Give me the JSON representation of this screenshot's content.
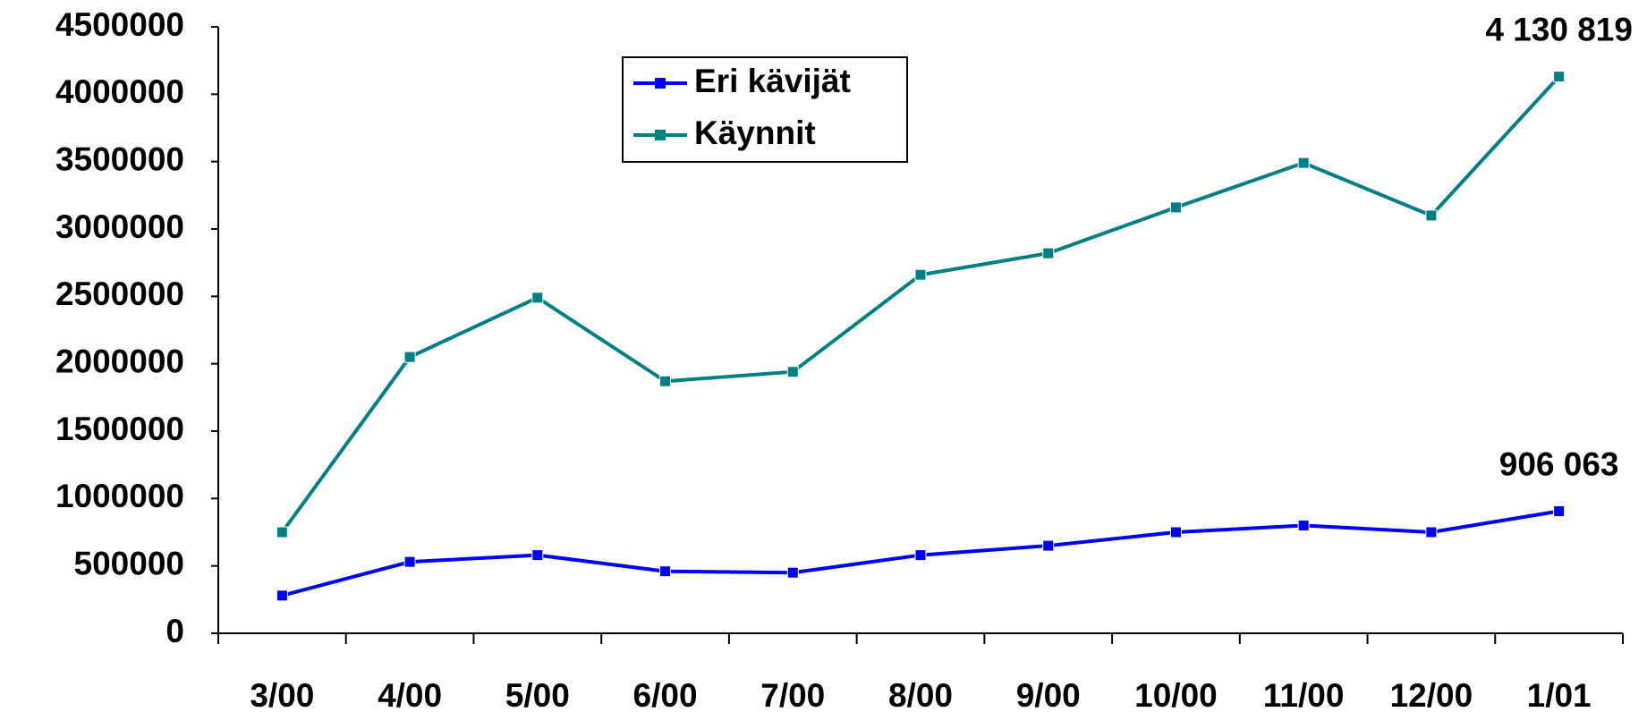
{
  "chart_data": {
    "type": "line",
    "categories": [
      "3/00",
      "4/00",
      "5/00",
      "6/00",
      "7/00",
      "8/00",
      "9/00",
      "10/00",
      "11/00",
      "12/00",
      "1/01"
    ],
    "series": [
      {
        "name": "Eri kävijät",
        "color": "#0000ff",
        "values": [
          280000,
          530000,
          580000,
          460000,
          450000,
          580000,
          650000,
          750000,
          800000,
          750000,
          906063
        ],
        "value_labels": [
          null,
          null,
          null,
          null,
          null,
          null,
          null,
          null,
          null,
          null,
          "906 063"
        ]
      },
      {
        "name": "Käynnit",
        "color": "#008080",
        "values": [
          750000,
          2050000,
          2490000,
          1870000,
          1940000,
          2660000,
          2820000,
          3160000,
          3490000,
          3100000,
          4130819
        ],
        "value_labels": [
          null,
          null,
          null,
          null,
          null,
          null,
          null,
          null,
          null,
          null,
          "4 130 819"
        ]
      }
    ],
    "ylim": [
      0,
      4500000
    ],
    "yticks": [
      0,
      500000,
      1000000,
      1500000,
      2000000,
      2500000,
      3000000,
      3500000,
      4000000,
      4500000
    ],
    "grid": false
  }
}
